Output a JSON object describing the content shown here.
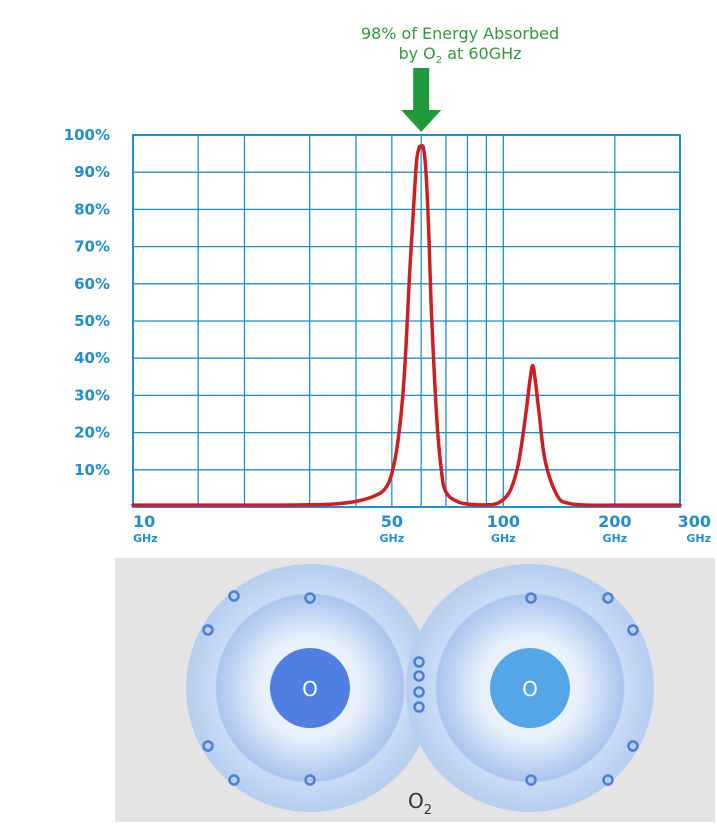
{
  "chart_data": {
    "type": "line",
    "title": "",
    "xlabel": "",
    "ylabel": "",
    "x_scale": "log",
    "xlim": [
      10,
      300
    ],
    "ylim": [
      0,
      100
    ],
    "grid": true,
    "annotation": {
      "line1": "98% of Energy Absorbed",
      "line2_prefix": "by O",
      "line2_sub": "2",
      "line2_suffix": " at 60GHz",
      "x": 60,
      "arrow_color": "#1f9a3a"
    },
    "y_ticks": [
      {
        "value": 10,
        "label": "10%"
      },
      {
        "value": 20,
        "label": "20%"
      },
      {
        "value": 30,
        "label": "30%"
      },
      {
        "value": 40,
        "label": "40%"
      },
      {
        "value": 50,
        "label": "50%"
      },
      {
        "value": 60,
        "label": "60%"
      },
      {
        "value": 70,
        "label": "70%"
      },
      {
        "value": 80,
        "label": "80%"
      },
      {
        "value": 90,
        "label": "90%"
      },
      {
        "value": 100,
        "label": "100%"
      }
    ],
    "x_ticks": [
      {
        "value": 10,
        "label": "10",
        "unit": "GHz"
      },
      {
        "value": 50,
        "label": "50",
        "unit": "GHz"
      },
      {
        "value": 100,
        "label": "100",
        "unit": "GHz"
      },
      {
        "value": 200,
        "label": "200",
        "unit": "GHz"
      },
      {
        "value": 300,
        "label": "300",
        "unit": "GHz"
      }
    ],
    "x_gridlines": [
      10,
      15,
      20,
      30,
      40,
      50,
      60,
      70,
      80,
      90,
      100,
      200,
      300
    ],
    "series": [
      {
        "color": "#cc1f1f",
        "x": [
          10,
          15,
          20,
          25,
          30,
          35,
          40,
          45,
          48,
          50,
          52,
          54,
          56,
          58,
          59,
          60,
          61,
          62,
          63,
          64,
          66,
          68,
          70,
          75,
          80,
          85,
          90,
          95,
          100,
          105,
          110,
          115,
          118,
          120,
          122,
          125,
          130,
          140,
          150,
          170,
          200,
          250,
          300
        ],
        "y": [
          0.5,
          0.5,
          0.5,
          0.5,
          0.6,
          0.8,
          1.5,
          3,
          5,
          9,
          18,
          35,
          65,
          90,
          96,
          97,
          96,
          88,
          72,
          52,
          25,
          10,
          4,
          1.5,
          0.8,
          0.6,
          0.6,
          0.8,
          2,
          5,
          12,
          25,
          34,
          38,
          34,
          25,
          12,
          3,
          1,
          0.5,
          0.5,
          0.5,
          0.5
        ]
      }
    ],
    "colors": {
      "grid": "#1e8fd0",
      "axis": "#1e8fd0",
      "labels": "#1e8fd0",
      "line": "#cc1f1f"
    }
  },
  "molecule": {
    "atoms": [
      {
        "label": "O"
      },
      {
        "label": "O"
      }
    ],
    "caption_main": "O",
    "caption_sub": "2",
    "colors": {
      "background": "#e5e5e5",
      "outer_shell": "#c4d7f4",
      "inner_shell": "#a9c6ef",
      "left_nucleus": "#4f7fe0",
      "right_nucleus": "#55a6e8",
      "electron": "#4a7fd8"
    }
  }
}
